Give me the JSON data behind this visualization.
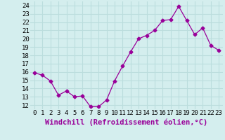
{
  "x": [
    0,
    1,
    2,
    3,
    4,
    5,
    6,
    7,
    8,
    9,
    10,
    11,
    12,
    13,
    14,
    15,
    16,
    17,
    18,
    19,
    20,
    21,
    22,
    23
  ],
  "y": [
    15.9,
    15.6,
    14.9,
    13.2,
    13.7,
    13.0,
    13.1,
    11.8,
    11.8,
    12.6,
    14.9,
    16.7,
    18.4,
    20.0,
    20.4,
    21.0,
    22.2,
    22.3,
    23.9,
    22.2,
    20.5,
    21.3,
    19.2,
    18.6
  ],
  "xlim": [
    -0.5,
    23.5
  ],
  "ylim": [
    11.5,
    24.5
  ],
  "yticks": [
    12,
    13,
    14,
    15,
    16,
    17,
    18,
    19,
    20,
    21,
    22,
    23,
    24
  ],
  "xticks": [
    0,
    1,
    2,
    3,
    4,
    5,
    6,
    7,
    8,
    9,
    10,
    11,
    12,
    13,
    14,
    15,
    16,
    17,
    18,
    19,
    20,
    21,
    22,
    23
  ],
  "xlabel": "Windchill (Refroidissement éolien,°C)",
  "line_color": "#990099",
  "marker": "D",
  "marker_size": 2.5,
  "background_color": "#d4eeee",
  "grid_color": "#bbdddd",
  "tick_label_fontsize": 6.5,
  "xlabel_fontsize": 7.5
}
